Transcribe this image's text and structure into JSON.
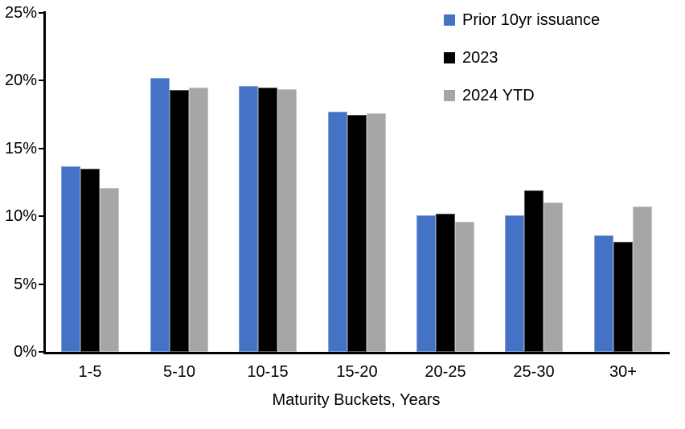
{
  "chart_data": {
    "type": "bar",
    "title": "",
    "categories": [
      "1-5",
      "5-10",
      "10-15",
      "15-20",
      "20-25",
      "25-30",
      "30+"
    ],
    "series": [
      {
        "name": "Prior 10yr issuance",
        "color": "#4472C4",
        "values": [
          13.7,
          20.2,
          19.6,
          17.7,
          10.1,
          10.1,
          8.6
        ]
      },
      {
        "name": "2023",
        "color": "#000000",
        "values": [
          13.5,
          19.3,
          19.5,
          17.5,
          10.2,
          11.9,
          8.1
        ]
      },
      {
        "name": "2024 YTD",
        "color": "#A6A6A6",
        "values": [
          12.1,
          19.5,
          19.4,
          17.6,
          9.6,
          11.0,
          10.7
        ]
      }
    ],
    "xlabel": "Maturity Buckets, Years",
    "ylabel": "",
    "ylim": [
      0,
      25
    ],
    "ytick_step": 5,
    "ytick_labels": [
      "0%",
      "5%",
      "10%",
      "15%",
      "20%",
      "25%"
    ],
    "grid": false,
    "legend_position": "top-right",
    "axis_color": "#000000",
    "background_color": "#FFFFFF"
  }
}
